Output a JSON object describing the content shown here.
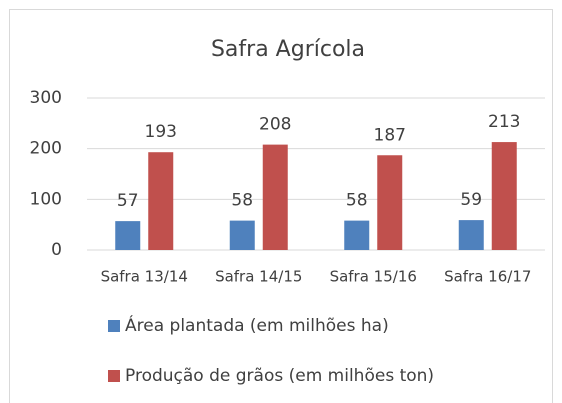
{
  "chart_data": {
    "type": "bar",
    "title": "Safra Agrícola",
    "categories": [
      "Safra 13/14",
      "Safra 14/15",
      "Safra 15/16",
      "Safra 16/17"
    ],
    "series": [
      {
        "name": "Área plantada (em milhões ha)",
        "color": "#4f81bd",
        "values": [
          57,
          58,
          58,
          59
        ]
      },
      {
        "name": "Produção de grãos (em milhões ton)",
        "color": "#c0504d",
        "values": [
          193,
          208,
          187,
          213
        ]
      }
    ],
    "ylim": [
      0,
      300
    ],
    "yticks": [
      0,
      100,
      200,
      300
    ],
    "grid": true,
    "legend": "bottom"
  }
}
